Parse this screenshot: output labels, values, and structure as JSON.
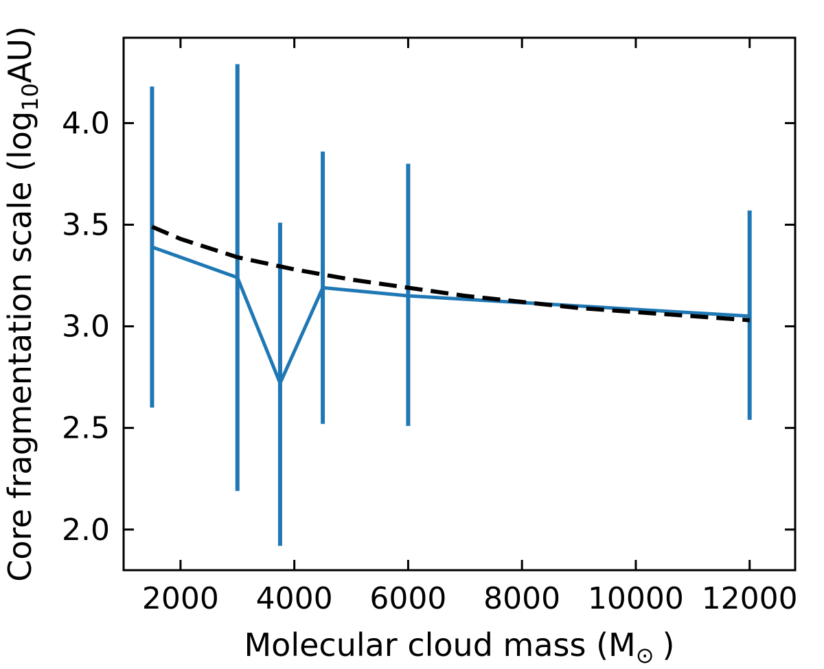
{
  "chart_data": {
    "type": "line",
    "title": "",
    "xlabel": "Molecular cloud mass (M",
    "xlabel_unit_symbol": "⊙",
    "xlabel_close": ")",
    "ylabel": "Core fragmentation scale (log",
    "ylabel_sub": "10",
    "ylabel_unit": "AU)",
    "xlim": [
      1000,
      12800
    ],
    "ylim": [
      1.8,
      4.42
    ],
    "x_ticks": [
      2000,
      4000,
      6000,
      8000,
      10000,
      12000
    ],
    "y_ticks": [
      2.0,
      2.5,
      3.0,
      3.5,
      4.0
    ],
    "x_tick_labels": [
      "2000",
      "4000",
      "6000",
      "8000",
      "10000",
      "12000"
    ],
    "y_tick_labels": [
      "2.0",
      "2.5",
      "3.0",
      "3.5",
      "4.0"
    ],
    "grid": false,
    "series": [
      {
        "style": "solid",
        "color": "#1f77b4",
        "x": [
          1500,
          3000,
          3750,
          4500,
          6000,
          12000
        ],
        "y": [
          3.39,
          3.24,
          2.72,
          3.19,
          3.15,
          3.05
        ],
        "err_low": [
          2.6,
          2.19,
          1.92,
          2.52,
          2.51,
          2.54
        ],
        "err_high": [
          4.18,
          4.29,
          3.51,
          3.86,
          3.8,
          3.57
        ]
      },
      {
        "style": "dashed",
        "color": "#000000",
        "x": [
          1500,
          2000,
          3000,
          4000,
          5000,
          6000,
          7000,
          8000,
          9000,
          10000,
          11000,
          12000
        ],
        "y": [
          3.49,
          3.43,
          3.34,
          3.28,
          3.23,
          3.19,
          3.15,
          3.12,
          3.09,
          3.07,
          3.05,
          3.03
        ]
      }
    ]
  }
}
